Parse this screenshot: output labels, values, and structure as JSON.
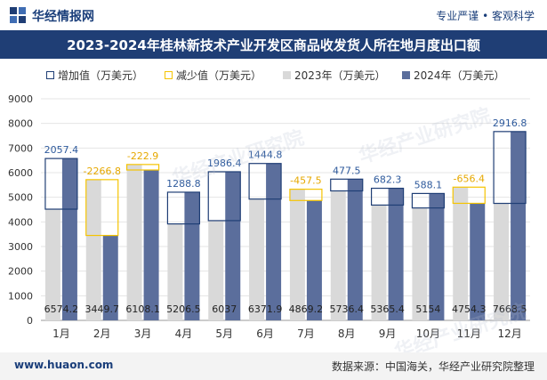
{
  "header": {
    "brand": "华经情报网",
    "slogan": "专业严谨 • 客观科学"
  },
  "footer": {
    "website": "www.huaon.com",
    "source": "数据来源：中国海关，华经产业研究院整理"
  },
  "watermark": {
    "text": "华经产业研究院"
  },
  "colors": {
    "title_bg": "#1f3e75",
    "series_2023": "#d9d9d9",
    "series_2024": "#5b6e9c",
    "increase_outline": "#1f3e75",
    "decrease_outline": "#f5c400",
    "label_increase": "#2e5a9c",
    "label_decrease": "#e6a800",
    "label_value": "#222222"
  },
  "chart_data": {
    "type": "bar",
    "title": "2023-2024年桂林新技术产业开发区商品收发货人所在地月度出口额",
    "categories": [
      "1月",
      "2月",
      "3月",
      "4月",
      "5月",
      "6月",
      "7月",
      "8月",
      "9月",
      "10月",
      "11月",
      "12月"
    ],
    "ylim": [
      0,
      9000
    ],
    "yticks": [
      "0",
      "1000",
      "2000",
      "3000",
      "4000",
      "5000",
      "6000",
      "7000",
      "8000",
      "9000"
    ],
    "legend": [
      "增加值（万美元）",
      "减少值（万美元）",
      "2023年（万美元）",
      "2024年（万美元）"
    ],
    "series": [
      {
        "name": "2023年（万美元）",
        "values": [
          4517,
          5716,
          6331,
          3918,
          4051,
          4927,
          5327,
          5259,
          4683,
          4566,
          5411,
          4752
        ]
      },
      {
        "name": "2024年（万美元）",
        "values": [
          6574.2,
          3449.7,
          6108.1,
          5206.5,
          6037,
          6371.9,
          4869.2,
          5736.4,
          5365.4,
          5154,
          4754.3,
          7668.5
        ]
      }
    ],
    "change_values": [
      2057.4,
      -2266.8,
      -222.9,
      1288.8,
      1986.4,
      1444.8,
      -457.5,
      477.5,
      682.3,
      588.1,
      -656.4,
      2916.8
    ],
    "change_labels": [
      "2057.4",
      "-2266.8",
      "-222.9",
      "1288.8",
      "1986.4",
      "1444.8",
      "-457.5",
      "477.5",
      "682.3",
      "588.1",
      "-656.4",
      "2916.8"
    ],
    "value_labels_2024": [
      "6574.2",
      "3449.7",
      "6108.1",
      "5206.5",
      "6037",
      "6371.9",
      "4869.2",
      "5736.4",
      "5365.4",
      "5154",
      "4754.3",
      "7668.5"
    ]
  }
}
